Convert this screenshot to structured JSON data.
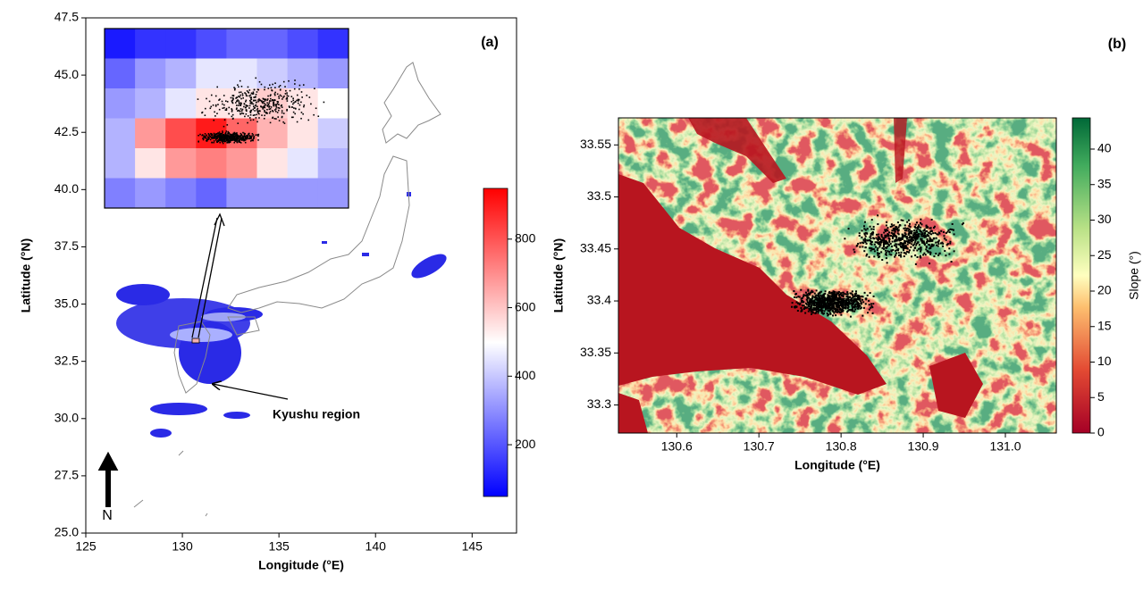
{
  "chart_data": [
    {
      "type": "map",
      "panel_label": "(a)",
      "xlabel": "Longitude (°E)",
      "ylabel": "Latitude (°N)",
      "annotation": "Kyushu region",
      "north": "N",
      "xlim": [
        125,
        147.3
      ],
      "ylim": [
        25,
        47.5
      ],
      "xticks": [
        125,
        130,
        135,
        140,
        145
      ],
      "yticks": [
        {
          "value": 25,
          "label": "25.0"
        },
        27.5,
        {
          "value": 30,
          "label": "30.0"
        },
        32.5,
        {
          "value": 35,
          "label": "35.0"
        },
        37.5,
        {
          "value": 40,
          "label": "40.0"
        },
        42.5,
        {
          "value": 45,
          "label": "45.0"
        },
        47.5
      ],
      "colorbar": {
        "colormap": "bwr",
        "lim": [
          49,
          948
        ],
        "ticks": [
          200,
          400,
          600,
          800
        ]
      }
    },
    {
      "type": "map",
      "panel_label": "(b)",
      "xlabel": "Longitude (°E)",
      "ylabel": "Latitude (°N)",
      "xlim": [
        130.529,
        131.062
      ],
      "ylim": [
        33.273,
        33.576
      ],
      "xticks": [
        130.6,
        130.7,
        130.8,
        130.9,
        {
          "value": 131,
          "label": "131.0"
        }
      ],
      "yticks": [
        33.3,
        33.35,
        33.4,
        33.45,
        33.5,
        33.55
      ],
      "colorbar": {
        "colormap": "RdYlGn",
        "label": "Slope (°)",
        "lim": [
          0,
          44.4
        ],
        "ticks": [
          0,
          5,
          10,
          15,
          20,
          25,
          30,
          35,
          40
        ]
      }
    }
  ]
}
